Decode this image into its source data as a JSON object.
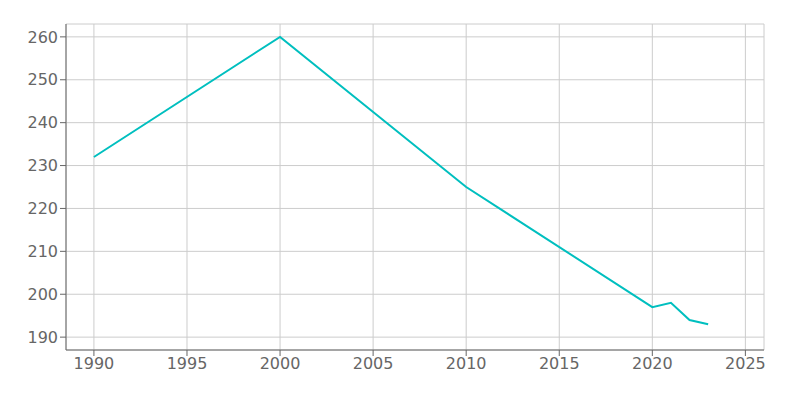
{
  "chart_data": {
    "type": "line",
    "x": [
      1990,
      2000,
      2010,
      2020,
      2021,
      2022,
      2023
    ],
    "values": [
      232,
      260,
      225,
      197,
      198,
      194,
      193
    ],
    "color": "#00BFBF",
    "xlim": [
      1988.5,
      2026
    ],
    "ylim": [
      187,
      263
    ],
    "xticks": [
      1990,
      1995,
      2000,
      2005,
      2010,
      2015,
      2020,
      2025
    ],
    "yticks": [
      190,
      200,
      210,
      220,
      230,
      240,
      250,
      260
    ],
    "grid": true
  }
}
